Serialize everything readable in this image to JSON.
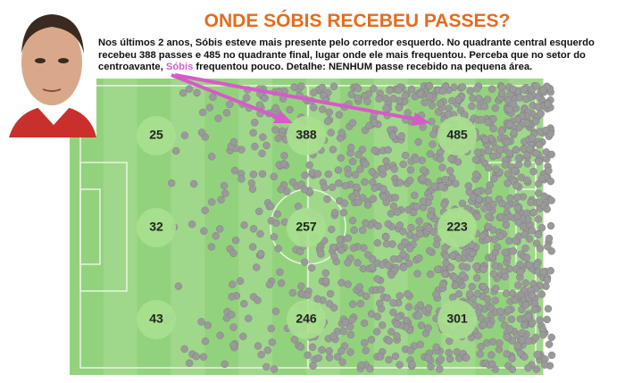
{
  "title": "ONDE SÓBIS RECEBEU PASSES?",
  "description": {
    "before": "Nos últimos 2 anos, Sóbis esteve mais presente pelo corredor esquerdo. No quadrante central esquerdo recebeu 388 passes e 485 no quadrante final, lugar onde ele mais frequentou. Perceba que no setor do centroavante, ",
    "highlight": "Sóbis",
    "after": " frequentou pouco. Detalhe: NENHUM passe recebido na pequena área."
  },
  "zones": [
    [
      25,
      388,
      485
    ],
    [
      32,
      257,
      223
    ],
    [
      43,
      246,
      301
    ]
  ]
}
